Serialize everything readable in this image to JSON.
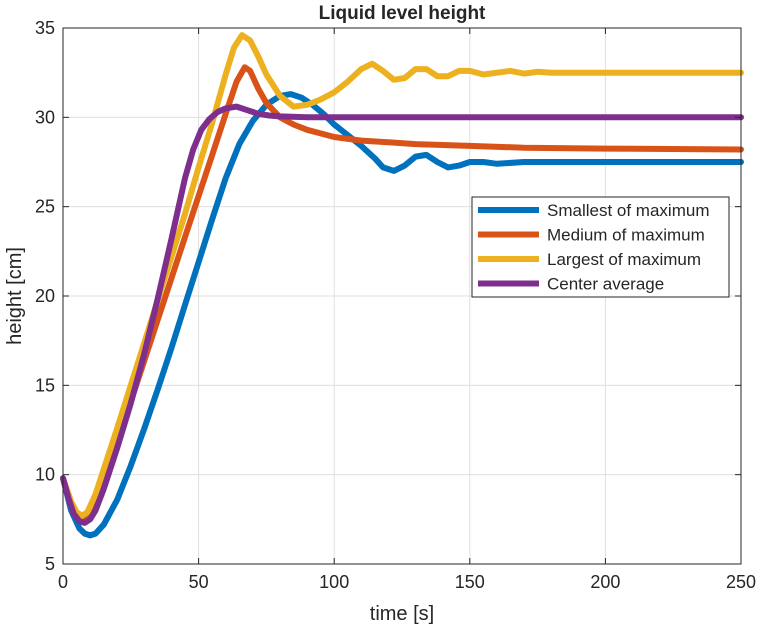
{
  "chart_data": {
    "type": "line",
    "title": "Liquid level height",
    "xlabel": "time [s]",
    "ylabel": "height [cm]",
    "xlim": [
      0,
      250
    ],
    "ylim": [
      5,
      35
    ],
    "xticks": [
      0,
      50,
      100,
      150,
      200,
      250
    ],
    "yticks": [
      5,
      10,
      15,
      20,
      25,
      30,
      35
    ],
    "grid": true,
    "legend_position": "right",
    "series": [
      {
        "name": "Smallest of maximum",
        "color": "#0072BD",
        "x": [
          0,
          3,
          6,
          8,
          10,
          12,
          15,
          20,
          25,
          30,
          35,
          40,
          45,
          50,
          55,
          60,
          65,
          70,
          75,
          80,
          84,
          88,
          92,
          96,
          100,
          105,
          110,
          115,
          118,
          122,
          126,
          130,
          134,
          138,
          142,
          146,
          150,
          155,
          160,
          170,
          180,
          200,
          220,
          250
        ],
        "y": [
          9.8,
          8.0,
          7.0,
          6.7,
          6.6,
          6.7,
          7.2,
          8.6,
          10.5,
          12.6,
          14.8,
          17.1,
          19.5,
          21.9,
          24.3,
          26.6,
          28.5,
          29.8,
          30.7,
          31.2,
          31.3,
          31.1,
          30.7,
          30.2,
          29.6,
          29.0,
          28.4,
          27.7,
          27.2,
          27.0,
          27.3,
          27.8,
          27.9,
          27.5,
          27.2,
          27.3,
          27.5,
          27.5,
          27.4,
          27.5,
          27.5,
          27.5,
          27.5,
          27.5
        ]
      },
      {
        "name": "Medium of maximum",
        "color": "#D95319",
        "x": [
          0,
          3,
          5,
          7,
          9,
          12,
          15,
          20,
          25,
          30,
          35,
          40,
          45,
          50,
          55,
          60,
          64,
          67,
          69,
          72,
          75,
          80,
          85,
          90,
          95,
          100,
          110,
          120,
          130,
          150,
          170,
          200,
          250
        ],
        "y": [
          9.8,
          8.3,
          7.7,
          7.4,
          7.5,
          8.3,
          9.6,
          11.8,
          14.1,
          16.4,
          18.7,
          21.0,
          23.3,
          25.6,
          27.9,
          30.2,
          32.0,
          32.8,
          32.6,
          31.6,
          30.8,
          30.0,
          29.6,
          29.3,
          29.1,
          28.9,
          28.7,
          28.6,
          28.5,
          28.4,
          28.3,
          28.25,
          28.2
        ]
      },
      {
        "name": "Largest of maximum",
        "color": "#EDB120",
        "x": [
          0,
          3,
          5,
          7,
          9,
          12,
          15,
          20,
          25,
          30,
          35,
          40,
          45,
          50,
          55,
          60,
          63,
          66,
          69,
          72,
          75,
          80,
          85,
          90,
          95,
          100,
          105,
          110,
          114,
          118,
          122,
          126,
          130,
          134,
          138,
          142,
          146,
          150,
          155,
          160,
          165,
          170,
          175,
          180,
          190,
          200,
          250
        ],
        "y": [
          9.8,
          8.5,
          7.9,
          7.7,
          7.9,
          8.9,
          10.3,
          12.6,
          15.0,
          17.4,
          19.8,
          22.2,
          24.6,
          27.2,
          29.7,
          32.4,
          33.9,
          34.6,
          34.3,
          33.4,
          32.4,
          31.2,
          30.6,
          30.7,
          31.0,
          31.4,
          32.0,
          32.7,
          33.0,
          32.6,
          32.1,
          32.2,
          32.7,
          32.7,
          32.3,
          32.3,
          32.6,
          32.6,
          32.4,
          32.5,
          32.6,
          32.45,
          32.55,
          32.5,
          32.5,
          32.5,
          32.5
        ]
      },
      {
        "name": "Center average",
        "color": "#7E2F8E",
        "x": [
          0,
          2,
          4,
          6,
          8,
          10,
          12,
          15,
          20,
          25,
          30,
          35,
          40,
          45,
          48,
          51,
          54,
          57,
          60,
          64,
          68,
          72,
          76,
          80,
          90,
          100,
          120,
          150,
          200,
          250
        ],
        "y": [
          9.8,
          8.7,
          7.8,
          7.4,
          7.3,
          7.5,
          8.0,
          9.2,
          11.5,
          14.0,
          16.8,
          19.9,
          23.2,
          26.6,
          28.2,
          29.3,
          29.9,
          30.3,
          30.5,
          30.6,
          30.4,
          30.2,
          30.1,
          30.05,
          30.0,
          30.0,
          30.0,
          30.0,
          30.0,
          30.0
        ]
      }
    ]
  }
}
